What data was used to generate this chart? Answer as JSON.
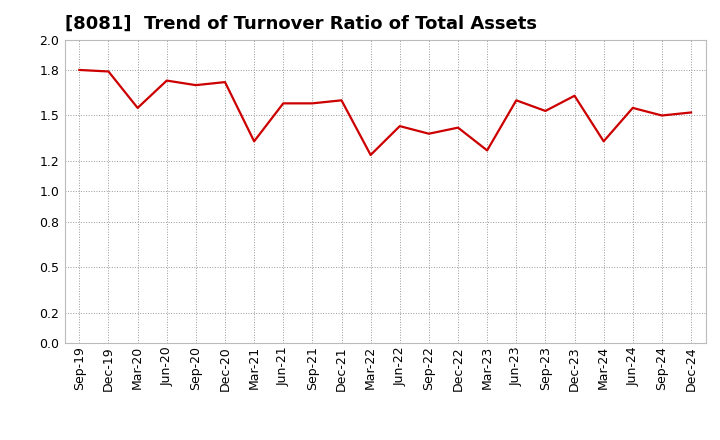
{
  "title": "[8081]  Trend of Turnover Ratio of Total Assets",
  "x_labels": [
    "Sep-19",
    "Dec-19",
    "Mar-20",
    "Jun-20",
    "Sep-20",
    "Dec-20",
    "Mar-21",
    "Jun-21",
    "Sep-21",
    "Dec-21",
    "Mar-22",
    "Jun-22",
    "Sep-22",
    "Dec-22",
    "Mar-23",
    "Jun-23",
    "Sep-23",
    "Dec-23",
    "Mar-24",
    "Jun-24",
    "Sep-24",
    "Dec-24"
  ],
  "values": [
    1.8,
    1.79,
    1.55,
    1.73,
    1.7,
    1.72,
    1.33,
    1.58,
    1.58,
    1.6,
    1.24,
    1.43,
    1.38,
    1.42,
    1.27,
    1.6,
    1.53,
    1.63,
    1.33,
    1.55,
    1.5,
    1.52
  ],
  "line_color": "#cc0000",
  "background_color": "#ffffff",
  "grid_color": "#999999",
  "ylim": [
    0.0,
    2.0
  ],
  "yticks": [
    0.0,
    0.2,
    0.5,
    0.8,
    1.0,
    1.2,
    1.5,
    1.8,
    2.0
  ],
  "title_fontsize": 13,
  "tick_fontsize": 9,
  "line_width": 1.6
}
